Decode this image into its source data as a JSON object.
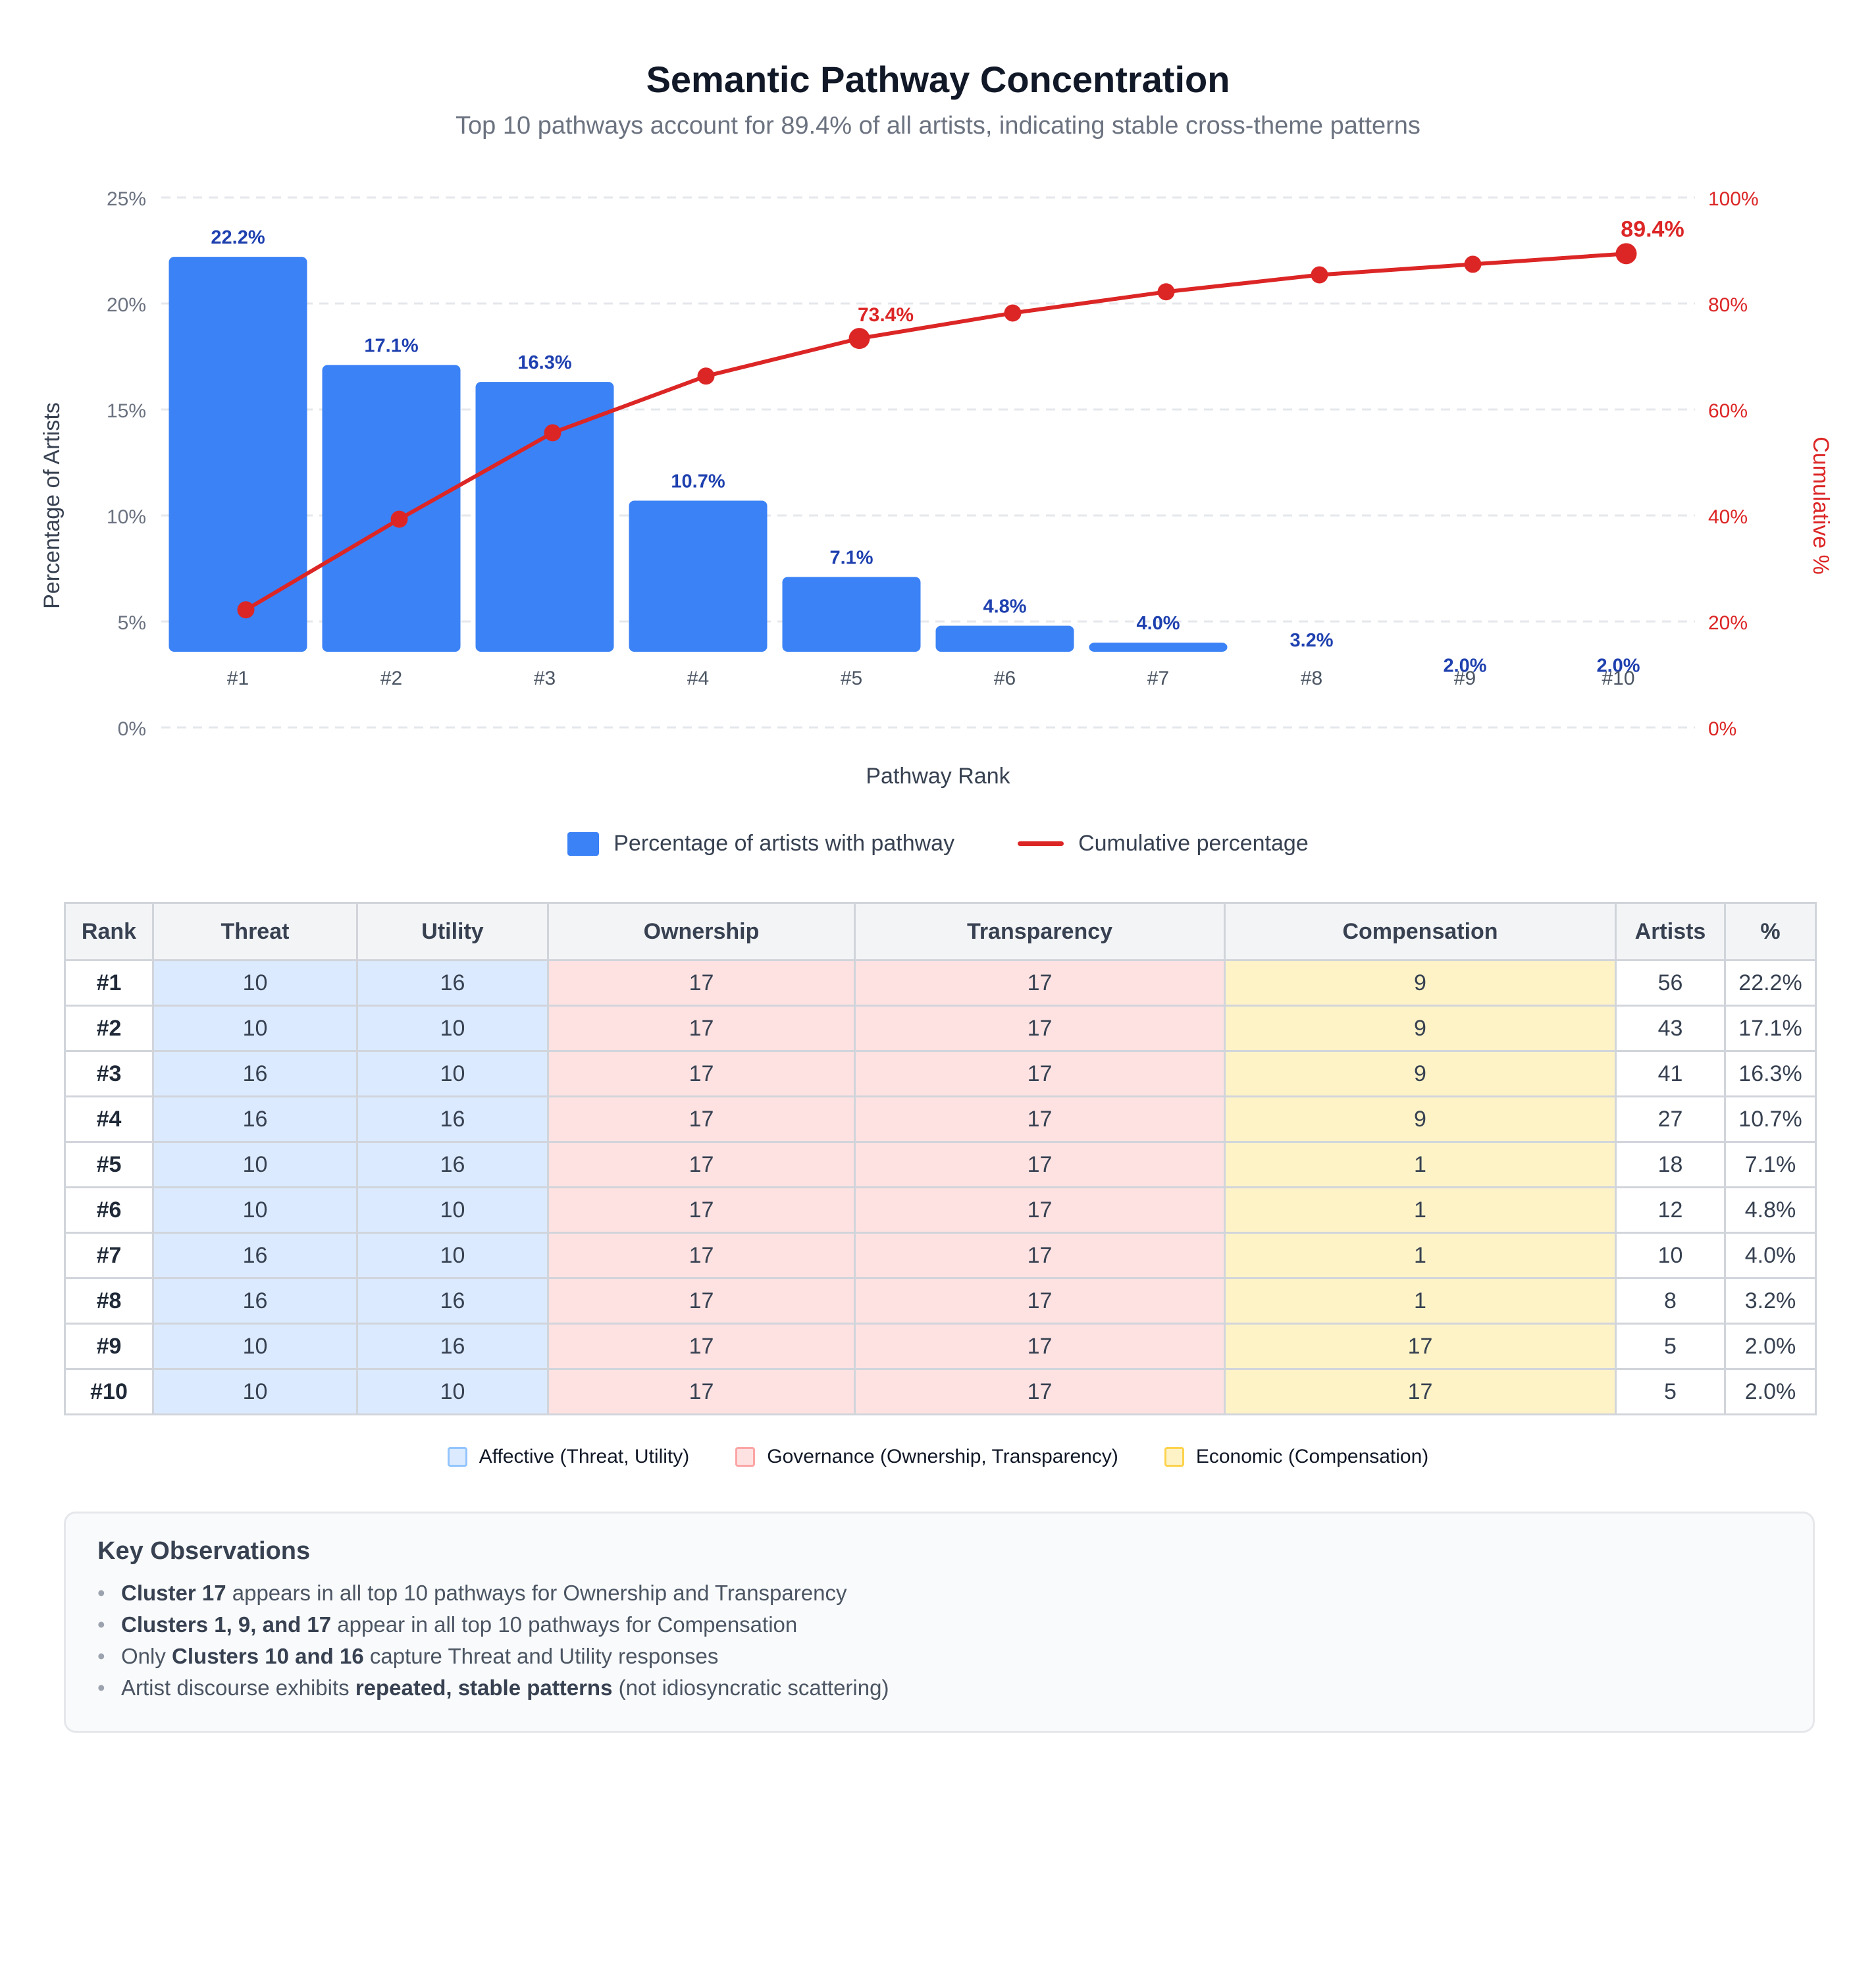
{
  "chart_data": {
    "type": "bar",
    "title": "Semantic Pathway Concentration",
    "subtitle": "Top 10 pathways account for 89.4% of all artists, indicating stable cross-theme patterns",
    "xlabel": "Pathway Rank",
    "ylabel": "Percentage of Artists",
    "y2label": "Cumulative %",
    "categories": [
      "#1",
      "#2",
      "#3",
      "#4",
      "#5",
      "#6",
      "#7",
      "#8",
      "#9",
      "#10"
    ],
    "series": [
      {
        "name": "Percentage of artists with pathway",
        "type": "bar",
        "axis": "left",
        "color": "#3b82f6",
        "values": [
          22.2,
          17.1,
          16.3,
          10.7,
          7.1,
          4.8,
          4.0,
          3.2,
          2.0,
          2.0
        ],
        "labels": [
          "22.2%",
          "17.1%",
          "16.3%",
          "10.7%",
          "7.1%",
          "4.8%",
          "4.0%",
          "3.2%",
          "2.0%",
          "2.0%"
        ]
      },
      {
        "name": "Cumulative percentage",
        "type": "line",
        "axis": "right",
        "color": "#dc2626",
        "values": [
          22.2,
          39.3,
          55.6,
          66.3,
          73.4,
          78.2,
          82.2,
          85.4,
          87.4,
          89.4
        ],
        "highlight_labels": [
          {
            "index": 4,
            "label": "73.4%"
          },
          {
            "index": 9,
            "label": "89.4%"
          }
        ]
      }
    ],
    "ylim": [
      0,
      25
    ],
    "y2lim": [
      0,
      100
    ],
    "yticks": [
      "0%",
      "5%",
      "10%",
      "15%",
      "20%",
      "25%"
    ],
    "y2ticks": [
      "0%",
      "20%",
      "40%",
      "60%",
      "80%",
      "100%"
    ],
    "grid": true,
    "legend": "bottom"
  },
  "legend": {
    "bar_label": "Percentage of artists with pathway",
    "line_label": "Cumulative percentage"
  },
  "table": {
    "headers": [
      "Rank",
      "Threat",
      "Utility",
      "Ownership",
      "Transparency",
      "Compensation",
      "Artists",
      "%"
    ],
    "rows": [
      [
        "#1",
        "10",
        "16",
        "17",
        "17",
        "9",
        "56",
        "22.2%"
      ],
      [
        "#2",
        "10",
        "10",
        "17",
        "17",
        "9",
        "43",
        "17.1%"
      ],
      [
        "#3",
        "16",
        "10",
        "17",
        "17",
        "9",
        "41",
        "16.3%"
      ],
      [
        "#4",
        "16",
        "16",
        "17",
        "17",
        "9",
        "27",
        "10.7%"
      ],
      [
        "#5",
        "10",
        "16",
        "17",
        "17",
        "1",
        "18",
        "7.1%"
      ],
      [
        "#6",
        "10",
        "10",
        "17",
        "17",
        "1",
        "12",
        "4.8%"
      ],
      [
        "#7",
        "16",
        "10",
        "17",
        "17",
        "1",
        "10",
        "4.0%"
      ],
      [
        "#8",
        "16",
        "16",
        "17",
        "17",
        "1",
        "8",
        "3.2%"
      ],
      [
        "#9",
        "10",
        "16",
        "17",
        "17",
        "17",
        "5",
        "2.0%"
      ],
      [
        "#10",
        "10",
        "10",
        "17",
        "17",
        "17",
        "5",
        "2.0%"
      ]
    ]
  },
  "table_legend": [
    {
      "label": "Affective (Threat, Utility)",
      "fill": "#dbeafe",
      "border": "#93c5fd"
    },
    {
      "label": "Governance (Ownership, Transparency)",
      "fill": "#fee2e2",
      "border": "#fca5a5"
    },
    {
      "label": "Economic (Compensation)",
      "fill": "#fef3c7",
      "border": "#fcd34d"
    }
  ],
  "observations": {
    "title": "Key Observations",
    "items": [
      {
        "bold": "Cluster 17",
        "pre": "",
        "post": " appears in all top 10 pathways for Ownership and Transparency"
      },
      {
        "bold": "Clusters 1, 9, and 17",
        "pre": "",
        "post": " appear in all top 10 pathways for Compensation"
      },
      {
        "bold": "Clusters 10 and 16",
        "pre": "Only ",
        "post": " capture Threat and Utility responses"
      },
      {
        "bold": "repeated, stable patterns",
        "pre": "Artist discourse exhibits ",
        "post": " (not idiosyncratic scattering)"
      }
    ]
  }
}
